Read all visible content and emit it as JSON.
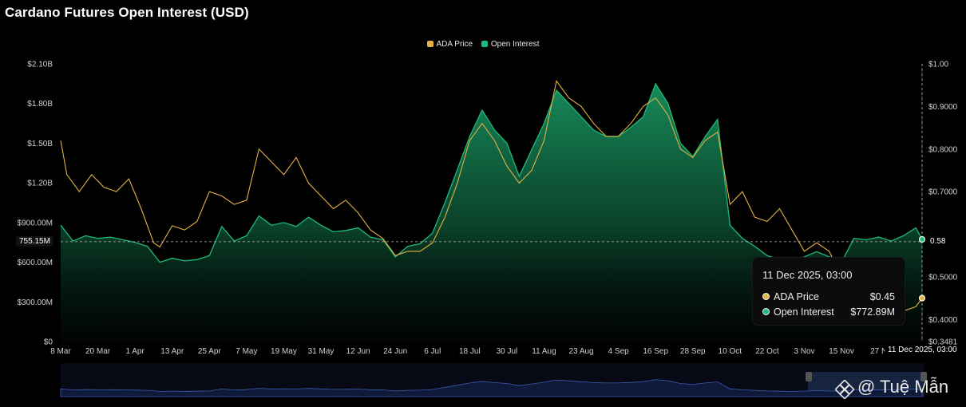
{
  "chart_data": {
    "type": "area",
    "title": "Cardano Futures Open Interest (USD)",
    "legend": {
      "placement": "top-center",
      "entries": [
        "ADA Price",
        "Open Interest"
      ]
    },
    "x_tick_labels": [
      "8 Mar",
      "20 Mar",
      "1 Apr",
      "13 Apr",
      "25 Apr",
      "7 May",
      "19 May",
      "31 May",
      "12 Jun",
      "24 Jun",
      "6 Jul",
      "18 Jul",
      "30 Jul",
      "11 Aug",
      "23 Aug",
      "4 Sep",
      "16 Sep",
      "28 Sep",
      "10 Oct",
      "22 Oct",
      "3 Nov",
      "15 Nov",
      "27 N"
    ],
    "x_range": [
      "2025-03-08",
      "2025-12-11"
    ],
    "left_axis": {
      "labels": [
        "$0",
        "$300.00M",
        "$600.00M",
        "$900.00M",
        "$1.20B",
        "$1.50B",
        "$1.80B",
        "$2.10B"
      ],
      "ylim": [
        0,
        2100000000
      ]
    },
    "right_axis": {
      "labels": [
        "$0.3481",
        "$0.4000",
        "$0.5000",
        "$0.6000",
        "$0.7000",
        "$0.8000",
        "$0.9000",
        "$1.00"
      ],
      "ylim": [
        0.3481,
        1.0
      ]
    },
    "grid": false,
    "series": [
      {
        "name": "Open Interest",
        "axis": "left",
        "color": "#1fb978",
        "points": [
          [
            "2025-03-08",
            880
          ],
          [
            "2025-03-12",
            760
          ],
          [
            "2025-03-16",
            800
          ],
          [
            "2025-03-20",
            780
          ],
          [
            "2025-03-24",
            790
          ],
          [
            "2025-03-28",
            770
          ],
          [
            "2025-04-01",
            750
          ],
          [
            "2025-04-05",
            720
          ],
          [
            "2025-04-09",
            600
          ],
          [
            "2025-04-13",
            630
          ],
          [
            "2025-04-17",
            610
          ],
          [
            "2025-04-21",
            620
          ],
          [
            "2025-04-25",
            650
          ],
          [
            "2025-04-29",
            870
          ],
          [
            "2025-05-03",
            760
          ],
          [
            "2025-05-07",
            800
          ],
          [
            "2025-05-11",
            950
          ],
          [
            "2025-05-15",
            880
          ],
          [
            "2025-05-19",
            900
          ],
          [
            "2025-05-23",
            870
          ],
          [
            "2025-05-27",
            940
          ],
          [
            "2025-05-31",
            880
          ],
          [
            "2025-06-04",
            830
          ],
          [
            "2025-06-08",
            840
          ],
          [
            "2025-06-12",
            860
          ],
          [
            "2025-06-16",
            790
          ],
          [
            "2025-06-20",
            770
          ],
          [
            "2025-06-24",
            640
          ],
          [
            "2025-06-28",
            720
          ],
          [
            "2025-07-02",
            740
          ],
          [
            "2025-07-06",
            820
          ],
          [
            "2025-07-10",
            1050
          ],
          [
            "2025-07-14",
            1300
          ],
          [
            "2025-07-18",
            1550
          ],
          [
            "2025-07-22",
            1750
          ],
          [
            "2025-07-26",
            1600
          ],
          [
            "2025-07-30",
            1500
          ],
          [
            "2025-08-03",
            1250
          ],
          [
            "2025-08-07",
            1450
          ],
          [
            "2025-08-11",
            1650
          ],
          [
            "2025-08-15",
            1900
          ],
          [
            "2025-08-19",
            1800
          ],
          [
            "2025-08-23",
            1700
          ],
          [
            "2025-08-27",
            1600
          ],
          [
            "2025-08-31",
            1550
          ],
          [
            "2025-09-04",
            1550
          ],
          [
            "2025-09-08",
            1620
          ],
          [
            "2025-09-12",
            1700
          ],
          [
            "2025-09-16",
            1950
          ],
          [
            "2025-09-20",
            1800
          ],
          [
            "2025-09-24",
            1500
          ],
          [
            "2025-09-28",
            1400
          ],
          [
            "2025-10-02",
            1550
          ],
          [
            "2025-10-06",
            1680
          ],
          [
            "2025-10-10",
            880
          ],
          [
            "2025-10-14",
            780
          ],
          [
            "2025-10-18",
            720
          ],
          [
            "2025-10-22",
            650
          ],
          [
            "2025-10-26",
            620
          ],
          [
            "2025-10-30",
            600
          ],
          [
            "2025-11-03",
            640
          ],
          [
            "2025-11-07",
            680
          ],
          [
            "2025-11-11",
            640
          ],
          [
            "2025-11-15",
            600
          ],
          [
            "2025-11-19",
            780
          ],
          [
            "2025-11-23",
            770
          ],
          [
            "2025-11-27",
            790
          ],
          [
            "2025-12-01",
            760
          ],
          [
            "2025-12-05",
            800
          ],
          [
            "2025-12-09",
            860
          ],
          [
            "2025-12-11",
            772.89
          ]
        ]
      },
      {
        "name": "ADA Price",
        "axis": "right",
        "color": "#e5b244",
        "points": [
          [
            "2025-03-08",
            0.82
          ],
          [
            "2025-03-10",
            0.74
          ],
          [
            "2025-03-14",
            0.7
          ],
          [
            "2025-03-18",
            0.74
          ],
          [
            "2025-03-22",
            0.71
          ],
          [
            "2025-03-26",
            0.7
          ],
          [
            "2025-03-30",
            0.73
          ],
          [
            "2025-04-03",
            0.66
          ],
          [
            "2025-04-07",
            0.58
          ],
          [
            "2025-04-09",
            0.57
          ],
          [
            "2025-04-13",
            0.62
          ],
          [
            "2025-04-17",
            0.61
          ],
          [
            "2025-04-21",
            0.63
          ],
          [
            "2025-04-25",
            0.7
          ],
          [
            "2025-04-29",
            0.69
          ],
          [
            "2025-05-03",
            0.67
          ],
          [
            "2025-05-07",
            0.68
          ],
          [
            "2025-05-11",
            0.8
          ],
          [
            "2025-05-15",
            0.77
          ],
          [
            "2025-05-19",
            0.74
          ],
          [
            "2025-05-23",
            0.78
          ],
          [
            "2025-05-27",
            0.72
          ],
          [
            "2025-05-31",
            0.69
          ],
          [
            "2025-06-04",
            0.66
          ],
          [
            "2025-06-08",
            0.68
          ],
          [
            "2025-06-12",
            0.65
          ],
          [
            "2025-06-16",
            0.61
          ],
          [
            "2025-06-20",
            0.59
          ],
          [
            "2025-06-24",
            0.55
          ],
          [
            "2025-06-28",
            0.56
          ],
          [
            "2025-07-02",
            0.56
          ],
          [
            "2025-07-06",
            0.58
          ],
          [
            "2025-07-10",
            0.64
          ],
          [
            "2025-07-14",
            0.72
          ],
          [
            "2025-07-18",
            0.82
          ],
          [
            "2025-07-22",
            0.86
          ],
          [
            "2025-07-26",
            0.82
          ],
          [
            "2025-07-30",
            0.76
          ],
          [
            "2025-08-03",
            0.72
          ],
          [
            "2025-08-07",
            0.75
          ],
          [
            "2025-08-11",
            0.82
          ],
          [
            "2025-08-15",
            0.96
          ],
          [
            "2025-08-19",
            0.92
          ],
          [
            "2025-08-23",
            0.9
          ],
          [
            "2025-08-27",
            0.86
          ],
          [
            "2025-08-31",
            0.83
          ],
          [
            "2025-09-04",
            0.83
          ],
          [
            "2025-09-08",
            0.86
          ],
          [
            "2025-09-12",
            0.9
          ],
          [
            "2025-09-16",
            0.92
          ],
          [
            "2025-09-20",
            0.88
          ],
          [
            "2025-09-24",
            0.8
          ],
          [
            "2025-09-28",
            0.78
          ],
          [
            "2025-10-02",
            0.82
          ],
          [
            "2025-10-06",
            0.84
          ],
          [
            "2025-10-10",
            0.67
          ],
          [
            "2025-10-14",
            0.7
          ],
          [
            "2025-10-18",
            0.64
          ],
          [
            "2025-10-22",
            0.63
          ],
          [
            "2025-10-26",
            0.66
          ],
          [
            "2025-10-30",
            0.61
          ],
          [
            "2025-11-03",
            0.56
          ],
          [
            "2025-11-07",
            0.58
          ],
          [
            "2025-11-11",
            0.56
          ],
          [
            "2025-11-15",
            0.5
          ],
          [
            "2025-11-19",
            0.47
          ],
          [
            "2025-11-23",
            0.43
          ],
          [
            "2025-11-27",
            0.42
          ],
          [
            "2025-12-01",
            0.39
          ],
          [
            "2025-12-05",
            0.42
          ],
          [
            "2025-12-09",
            0.43
          ],
          [
            "2025-12-11",
            0.45
          ]
        ]
      }
    ],
    "crosshair": {
      "oi_label": "755.15M",
      "price_label": "0.58",
      "oi_value": 755150000,
      "price_value": 0.58
    },
    "tooltip": {
      "date": "11 Dec 2025, 03:00",
      "rows": [
        {
          "label": "ADA Price",
          "value": "$0.45",
          "color": "#e5b244"
        },
        {
          "label": "Open Interest",
          "value": "$772.89M",
          "color": "#1fb978"
        }
      ]
    },
    "x_current_label": "11 Dec 2025, 03:00"
  },
  "watermark": "@ Tuệ Mẫn"
}
